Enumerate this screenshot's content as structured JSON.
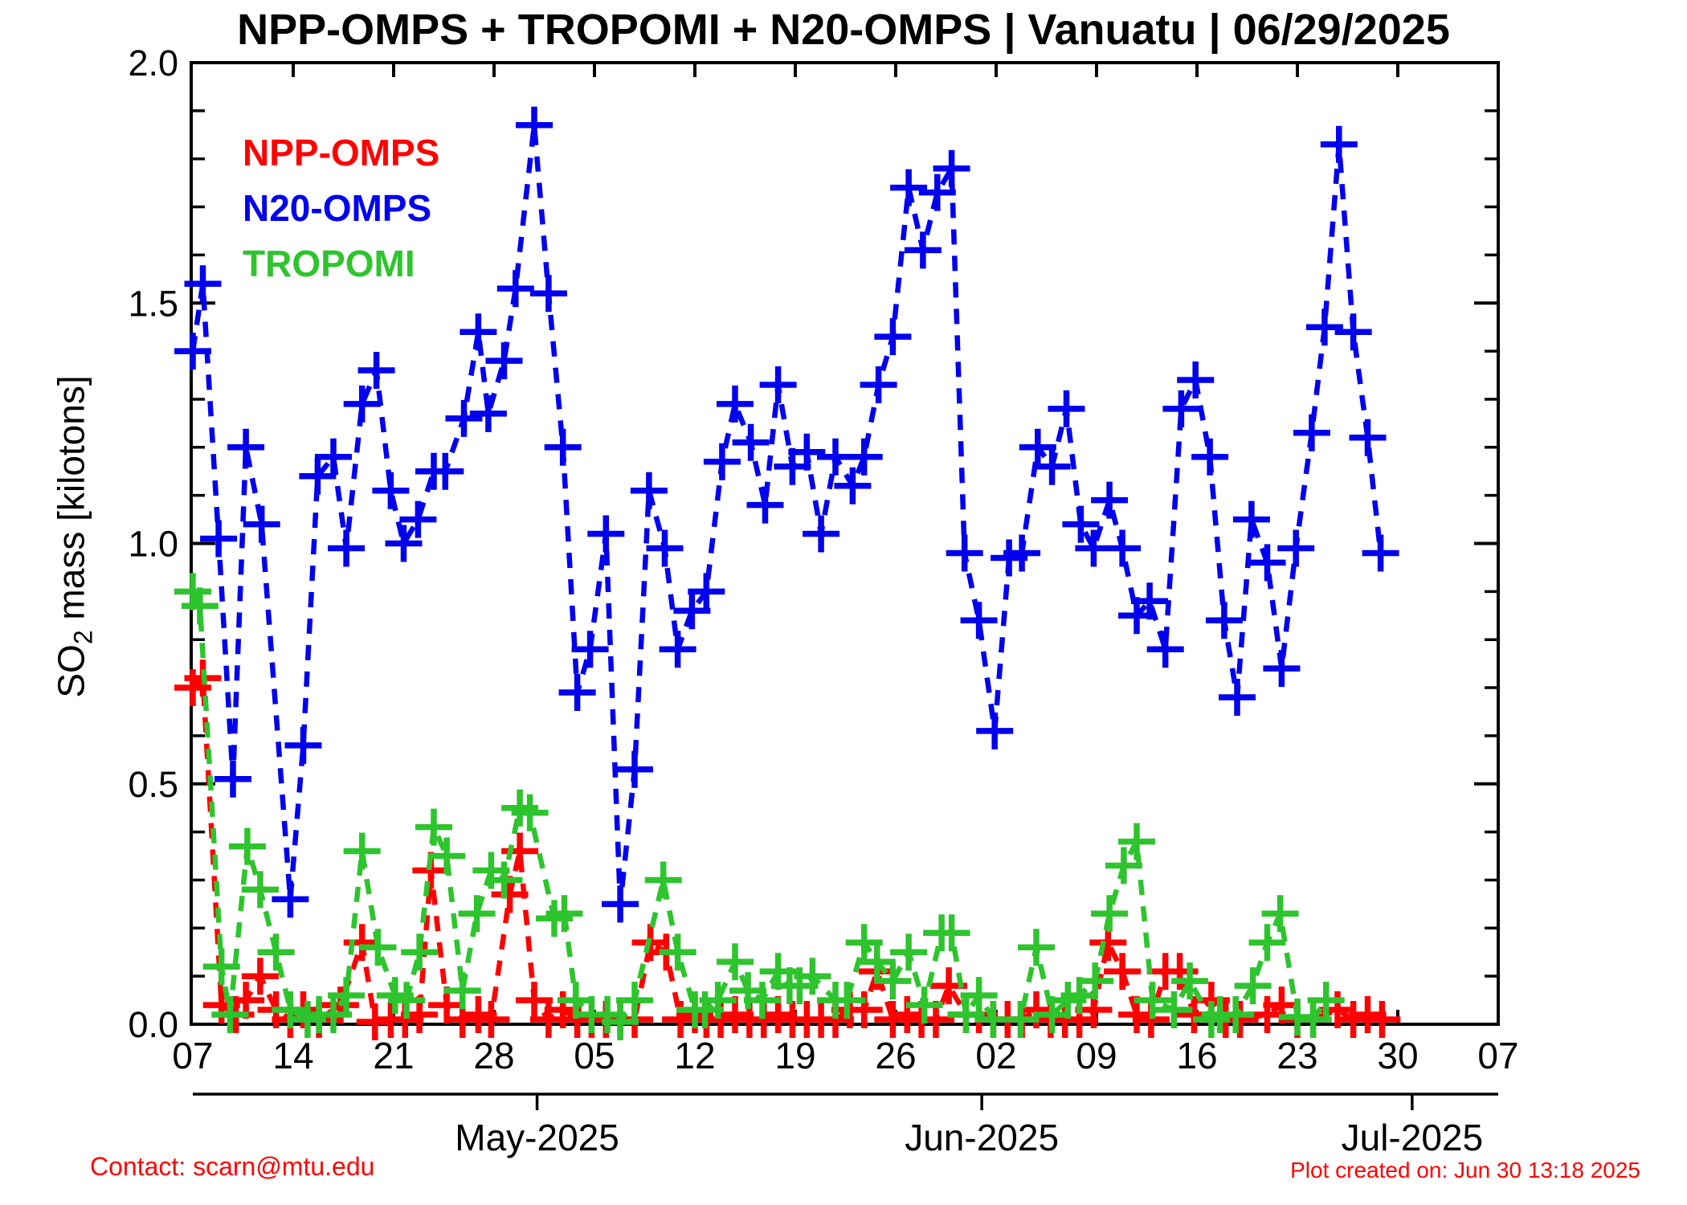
{
  "title": "NPP-OMPS + TROPOMI + N20-OMPS | Vanuatu | 06/29/2025",
  "legend": [
    {
      "label": "NPP-OMPS",
      "color": "#ff0000"
    },
    {
      "label": "N20-OMPS",
      "color": "#0000ee"
    },
    {
      "label": "TROPOMI",
      "color": "#2ec42e"
    }
  ],
  "y_axis": {
    "label_parts": [
      "SO",
      "2",
      " mass [kilotons]"
    ],
    "range": [
      0.0,
      2.0
    ],
    "minor_step": 0.1,
    "major_ticks": [
      {
        "value": 0.0,
        "label": "0.0"
      },
      {
        "value": 0.5,
        "label": "0.5"
      },
      {
        "value": 1.0,
        "label": "1.0"
      },
      {
        "value": 1.5,
        "label": "1.5"
      },
      {
        "value": 2.0,
        "label": "2.0"
      }
    ]
  },
  "x_axis": {
    "range_days": [
      0,
      91
    ],
    "week_ticks": [
      {
        "day": 0,
        "label": "07"
      },
      {
        "day": 7,
        "label": "14"
      },
      {
        "day": 14,
        "label": "21"
      },
      {
        "day": 21,
        "label": "28"
      },
      {
        "day": 28,
        "label": "05"
      },
      {
        "day": 35,
        "label": "12"
      },
      {
        "day": 42,
        "label": "19"
      },
      {
        "day": 49,
        "label": "26"
      },
      {
        "day": 56,
        "label": "02"
      },
      {
        "day": 63,
        "label": "09"
      },
      {
        "day": 70,
        "label": "16"
      },
      {
        "day": 77,
        "label": "23"
      },
      {
        "day": 84,
        "label": "30"
      },
      {
        "day": 91,
        "label": "07"
      }
    ],
    "month_ticks": [
      {
        "day": 24,
        "label": "May-2025"
      },
      {
        "day": 55,
        "label": "Jun-2025"
      },
      {
        "day": 85,
        "label": "Jul-2025"
      }
    ]
  },
  "footer": {
    "contact": "Contact: scarn@mtu.edu",
    "created": "Plot created on: Jun 30 13:18 2025"
  },
  "chart_data": {
    "type": "line",
    "x_unit": "days since 2025-04-07",
    "ylabel": "SO2 mass [kilotons]",
    "ylim": [
      0,
      2
    ],
    "grid": false,
    "legend_position": "upper-left-inside",
    "marker": "plus",
    "line_style": "dashed",
    "series": [
      {
        "name": "NPP-OMPS",
        "color": "#ff0000",
        "points": [
          [
            0,
            0.7
          ],
          [
            0.7,
            0.72
          ],
          [
            2,
            0.04
          ],
          [
            3,
            0.02
          ],
          [
            3.7,
            0.05
          ],
          [
            4.7,
            0.1
          ],
          [
            5.8,
            0.03
          ],
          [
            6.8,
            0.01
          ],
          [
            7.7,
            0.03
          ],
          [
            8.8,
            0.01
          ],
          [
            10.3,
            0.04
          ],
          [
            11.8,
            0.17
          ],
          [
            12.7,
            0.005
          ],
          [
            13.8,
            0.01
          ],
          [
            14.8,
            0.01
          ],
          [
            15.8,
            0.02
          ],
          [
            16.6,
            0.32
          ],
          [
            17.7,
            0.04
          ],
          [
            18.8,
            0.01
          ],
          [
            19.9,
            0.02
          ],
          [
            20.8,
            0.01
          ],
          [
            22.1,
            0.27
          ],
          [
            22.8,
            0.36
          ],
          [
            23.8,
            0.05
          ],
          [
            24.8,
            0.01
          ],
          [
            25.8,
            0.03
          ],
          [
            26.8,
            0.01
          ],
          [
            27.8,
            0.01
          ],
          [
            28.8,
            0.01
          ],
          [
            29.8,
            0.01
          ],
          [
            30.8,
            0.01
          ],
          [
            31.9,
            0.17
          ],
          [
            33,
            0.15
          ],
          [
            34,
            0.01
          ],
          [
            35,
            0.02
          ],
          [
            35.8,
            0.01
          ],
          [
            36.8,
            0.01
          ],
          [
            37.8,
            0.02
          ],
          [
            38.8,
            0.01
          ],
          [
            39.8,
            0.01
          ],
          [
            40.8,
            0.02
          ],
          [
            41.8,
            0.01
          ],
          [
            42.8,
            0.01
          ],
          [
            43.8,
            0.01
          ],
          [
            44.8,
            0.01
          ],
          [
            45.8,
            0.03
          ],
          [
            46.8,
            0.03
          ],
          [
            47.7,
            0.11
          ],
          [
            48.8,
            0.01
          ],
          [
            49.8,
            0.02
          ],
          [
            50.8,
            0.01
          ],
          [
            51.8,
            0.01
          ],
          [
            52.7,
            0.08
          ],
          [
            53.9,
            0.02
          ],
          [
            54.8,
            0.02
          ],
          [
            55.8,
            0.01
          ],
          [
            56.8,
            0.01
          ],
          [
            57.8,
            0.01
          ],
          [
            58.8,
            0.03
          ],
          [
            59.8,
            0.01
          ],
          [
            60.8,
            0.01
          ],
          [
            61.8,
            0.01
          ],
          [
            62.8,
            0.03
          ],
          [
            63.8,
            0.17
          ],
          [
            64.8,
            0.11
          ],
          [
            65.8,
            0.02
          ],
          [
            66.8,
            0.01
          ],
          [
            67.8,
            0.11
          ],
          [
            68.8,
            0.11
          ],
          [
            69.8,
            0.02
          ],
          [
            71,
            0.05
          ],
          [
            72,
            0.01
          ],
          [
            73,
            0.01
          ],
          [
            74.9,
            0.02
          ],
          [
            75.9,
            0.04
          ],
          [
            77,
            0.01
          ],
          [
            78.1,
            0.01
          ],
          [
            79.8,
            0.03
          ],
          [
            80.9,
            0.01
          ],
          [
            81.9,
            0.02
          ],
          [
            82.9,
            0.01
          ]
        ]
      },
      {
        "name": "TROPOMI",
        "color": "#2ec42e",
        "points": [
          [
            0,
            0.9
          ],
          [
            0.5,
            0.87
          ],
          [
            2,
            0.12
          ],
          [
            2.6,
            0.02
          ],
          [
            3.8,
            0.37
          ],
          [
            4.7,
            0.28
          ],
          [
            5.8,
            0.15
          ],
          [
            6.8,
            0.03
          ],
          [
            8,
            0.01
          ],
          [
            8.8,
            0.02
          ],
          [
            9.8,
            0.02
          ],
          [
            10.7,
            0.06
          ],
          [
            11.8,
            0.36
          ],
          [
            12.9,
            0.16
          ],
          [
            14.1,
            0.06
          ],
          [
            14.9,
            0.05
          ],
          [
            15.8,
            0.15
          ],
          [
            16.8,
            0.41
          ],
          [
            17.7,
            0.35
          ],
          [
            18.8,
            0.07
          ],
          [
            19.8,
            0.23
          ],
          [
            20.8,
            0.32
          ],
          [
            21.7,
            0.3
          ],
          [
            22.8,
            0.45
          ],
          [
            23.5,
            0.44
          ],
          [
            25.2,
            0.22
          ],
          [
            25.9,
            0.23
          ],
          [
            26.7,
            0.05
          ],
          [
            27.8,
            0.02
          ],
          [
            28.9,
            0.02
          ],
          [
            29.8,
            0.005
          ],
          [
            30.8,
            0.05
          ],
          [
            32.8,
            0.3
          ],
          [
            33.8,
            0.15
          ],
          [
            35,
            0.03
          ],
          [
            35.7,
            0.03
          ],
          [
            36.6,
            0.05
          ],
          [
            37.8,
            0.13
          ],
          [
            38.7,
            0.07
          ],
          [
            39.7,
            0.05
          ],
          [
            40.8,
            0.11
          ],
          [
            41.6,
            0.08
          ],
          [
            42.3,
            0.08
          ],
          [
            43.2,
            0.1
          ],
          [
            44.8,
            0.05
          ],
          [
            45.6,
            0.05
          ],
          [
            46.8,
            0.17
          ],
          [
            47.7,
            0.13
          ],
          [
            48.8,
            0.09
          ],
          [
            49.9,
            0.15
          ],
          [
            51,
            0.04
          ],
          [
            52.2,
            0.19
          ],
          [
            52.9,
            0.19
          ],
          [
            53.9,
            0.02
          ],
          [
            54.8,
            0.06
          ],
          [
            55.8,
            0.01
          ],
          [
            57.7,
            0.01
          ],
          [
            58.8,
            0.16
          ],
          [
            59.9,
            0.02
          ],
          [
            61,
            0.05
          ],
          [
            61.8,
            0.06
          ],
          [
            62.9,
            0.09
          ],
          [
            63.9,
            0.23
          ],
          [
            64.9,
            0.33
          ],
          [
            65.8,
            0.38
          ],
          [
            66.9,
            0.05
          ],
          [
            68.4,
            0.03
          ],
          [
            69.5,
            0.09
          ],
          [
            71,
            0.01
          ],
          [
            71.6,
            0.02
          ],
          [
            72.7,
            0.02
          ],
          [
            73.9,
            0.08
          ],
          [
            74.9,
            0.17
          ],
          [
            75.8,
            0.23
          ],
          [
            77,
            0.015
          ],
          [
            78.1,
            0.01
          ],
          [
            79,
            0.05
          ]
        ]
      },
      {
        "name": "N20-OMPS",
        "color": "#0000ee",
        "points": [
          [
            0,
            1.4
          ],
          [
            0.7,
            1.54
          ],
          [
            1.8,
            1.01
          ],
          [
            2.8,
            0.51
          ],
          [
            3.7,
            1.2
          ],
          [
            4.8,
            1.04
          ],
          [
            6.8,
            0.26
          ],
          [
            7.7,
            0.58
          ],
          [
            8.7,
            1.14
          ],
          [
            9.8,
            1.18
          ],
          [
            10.7,
            0.99
          ],
          [
            11.8,
            1.29
          ],
          [
            12.8,
            1.36
          ],
          [
            13.8,
            1.11
          ],
          [
            14.7,
            1.0
          ],
          [
            15.7,
            1.05
          ],
          [
            16.8,
            1.15
          ],
          [
            17.6,
            1.15
          ],
          [
            18.9,
            1.26
          ],
          [
            19.9,
            1.44
          ],
          [
            20.6,
            1.27
          ],
          [
            21.7,
            1.38
          ],
          [
            22.5,
            1.53
          ],
          [
            23.8,
            1.87
          ],
          [
            24.8,
            1.52
          ],
          [
            25.8,
            1.2
          ],
          [
            26.8,
            0.69
          ],
          [
            27.7,
            0.78
          ],
          [
            28.8,
            1.02
          ],
          [
            29.8,
            0.25
          ],
          [
            30.8,
            0.53
          ],
          [
            31.8,
            1.11
          ],
          [
            32.9,
            0.99
          ],
          [
            33.8,
            0.78
          ],
          [
            34.8,
            0.86
          ],
          [
            35.8,
            0.9
          ],
          [
            36.9,
            1.17
          ],
          [
            37.8,
            1.29
          ],
          [
            38.9,
            1.21
          ],
          [
            39.9,
            1.08
          ],
          [
            40.8,
            1.33
          ],
          [
            41.8,
            1.16
          ],
          [
            42.8,
            1.19
          ],
          [
            43.8,
            1.02
          ],
          [
            44.8,
            1.18
          ],
          [
            46,
            1.12
          ],
          [
            46.8,
            1.18
          ],
          [
            47.8,
            1.33
          ],
          [
            48.8,
            1.43
          ],
          [
            49.9,
            1.74
          ],
          [
            50.9,
            1.61
          ],
          [
            51.9,
            1.73
          ],
          [
            52.9,
            1.78
          ],
          [
            53.8,
            0.98
          ],
          [
            54.8,
            0.84
          ],
          [
            55.9,
            0.61
          ],
          [
            56.9,
            0.97
          ],
          [
            57.8,
            0.98
          ],
          [
            58.9,
            1.2
          ],
          [
            59.9,
            1.16
          ],
          [
            60.9,
            1.28
          ],
          [
            61.9,
            1.04
          ],
          [
            62.8,
            0.99
          ],
          [
            63.9,
            1.09
          ],
          [
            64.8,
            0.99
          ],
          [
            65.8,
            0.85
          ],
          [
            66.7,
            0.88
          ],
          [
            67.8,
            0.78
          ],
          [
            68.9,
            1.28
          ],
          [
            69.9,
            1.34
          ],
          [
            70.9,
            1.18
          ],
          [
            71.9,
            0.84
          ],
          [
            72.8,
            0.68
          ],
          [
            73.8,
            1.05
          ],
          [
            74.9,
            0.96
          ],
          [
            75.9,
            0.74
          ],
          [
            76.9,
            0.99
          ],
          [
            78,
            1.23
          ],
          [
            78.9,
            1.45
          ],
          [
            79.9,
            1.83
          ],
          [
            80.9,
            1.44
          ],
          [
            81.9,
            1.22
          ],
          [
            82.8,
            0.98
          ]
        ]
      }
    ]
  }
}
